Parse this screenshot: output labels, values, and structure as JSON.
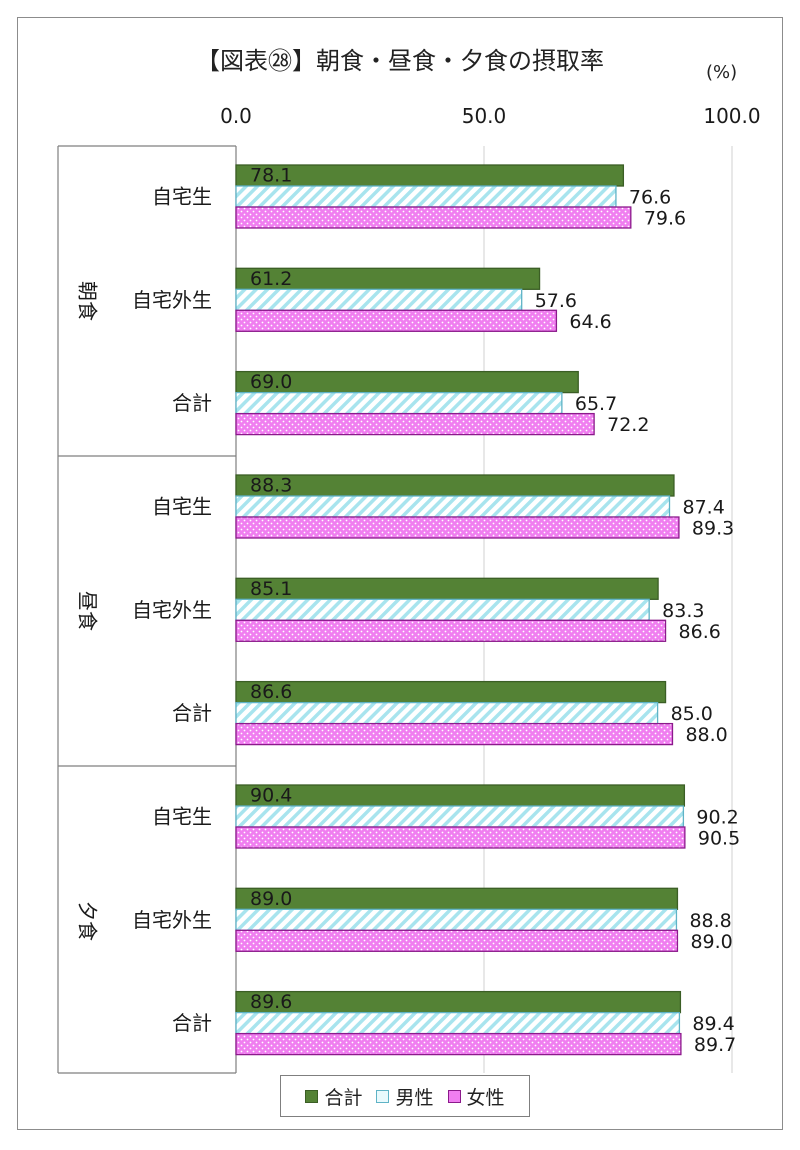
{
  "chart_data": {
    "type": "bar",
    "orientation": "horizontal",
    "title": "【図表㉘】朝食・昼食・夕食の摂取率",
    "unit": "(%)",
    "xlim": [
      0,
      100
    ],
    "xticks": [
      "0.0",
      "50.0",
      "100.0"
    ],
    "grid": true,
    "groups": [
      {
        "name": "朝食",
        "categories": [
          "自宅生",
          "自宅外生",
          "合計"
        ]
      },
      {
        "name": "昼食",
        "categories": [
          "自宅生",
          "自宅外生",
          "合計"
        ]
      },
      {
        "name": "夕食",
        "categories": [
          "自宅生",
          "自宅外生",
          "合計"
        ]
      }
    ],
    "series": [
      {
        "name": "合計",
        "color": "#538135",
        "values": [
          78.1,
          61.2,
          69.0,
          88.3,
          85.1,
          86.6,
          90.4,
          89.0,
          89.6
        ]
      },
      {
        "name": "男性",
        "color": "#9ee3ee",
        "values": [
          76.6,
          57.6,
          65.7,
          87.4,
          83.3,
          85.0,
          90.2,
          88.8,
          89.4
        ]
      },
      {
        "name": "女性",
        "color": "#cc33cc",
        "values": [
          79.6,
          64.6,
          72.2,
          89.3,
          86.6,
          88.0,
          90.5,
          89.0,
          89.7
        ]
      }
    ],
    "legend_position": "bottom"
  }
}
